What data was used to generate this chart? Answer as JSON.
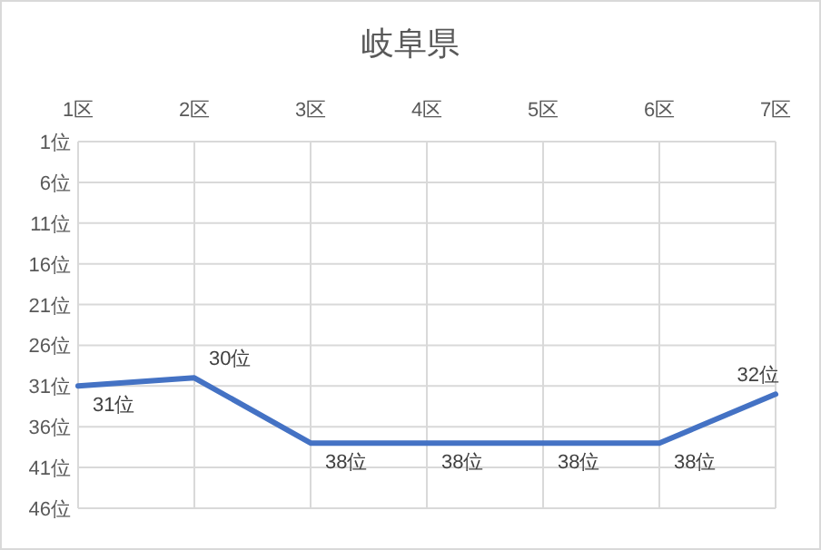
{
  "chart_data": {
    "type": "line",
    "title": "岐阜県",
    "categories": [
      "1区",
      "2区",
      "3区",
      "4区",
      "5区",
      "6区",
      "7区"
    ],
    "series": [
      {
        "color": "#4472c4",
        "values": [
          31,
          30,
          38,
          38,
          38,
          38,
          32
        ],
        "value_labels": [
          "31位",
          "30位",
          "38位",
          "38位",
          "38位",
          "38位",
          "32位"
        ]
      }
    ],
    "ylim": [
      46,
      1
    ],
    "yticks": [
      {
        "value": 1,
        "label": "1位"
      },
      {
        "value": 6,
        "label": "6位"
      },
      {
        "value": 11,
        "label": "11位"
      },
      {
        "value": 16,
        "label": "16位"
      },
      {
        "value": 21,
        "label": "21位"
      },
      {
        "value": 26,
        "label": "26位"
      },
      {
        "value": 31,
        "label": "31位"
      },
      {
        "value": 36,
        "label": "36位"
      },
      {
        "value": 41,
        "label": "41位"
      },
      {
        "value": 46,
        "label": "46位"
      }
    ],
    "grid": true,
    "marker": "none",
    "line_style": "solid"
  }
}
